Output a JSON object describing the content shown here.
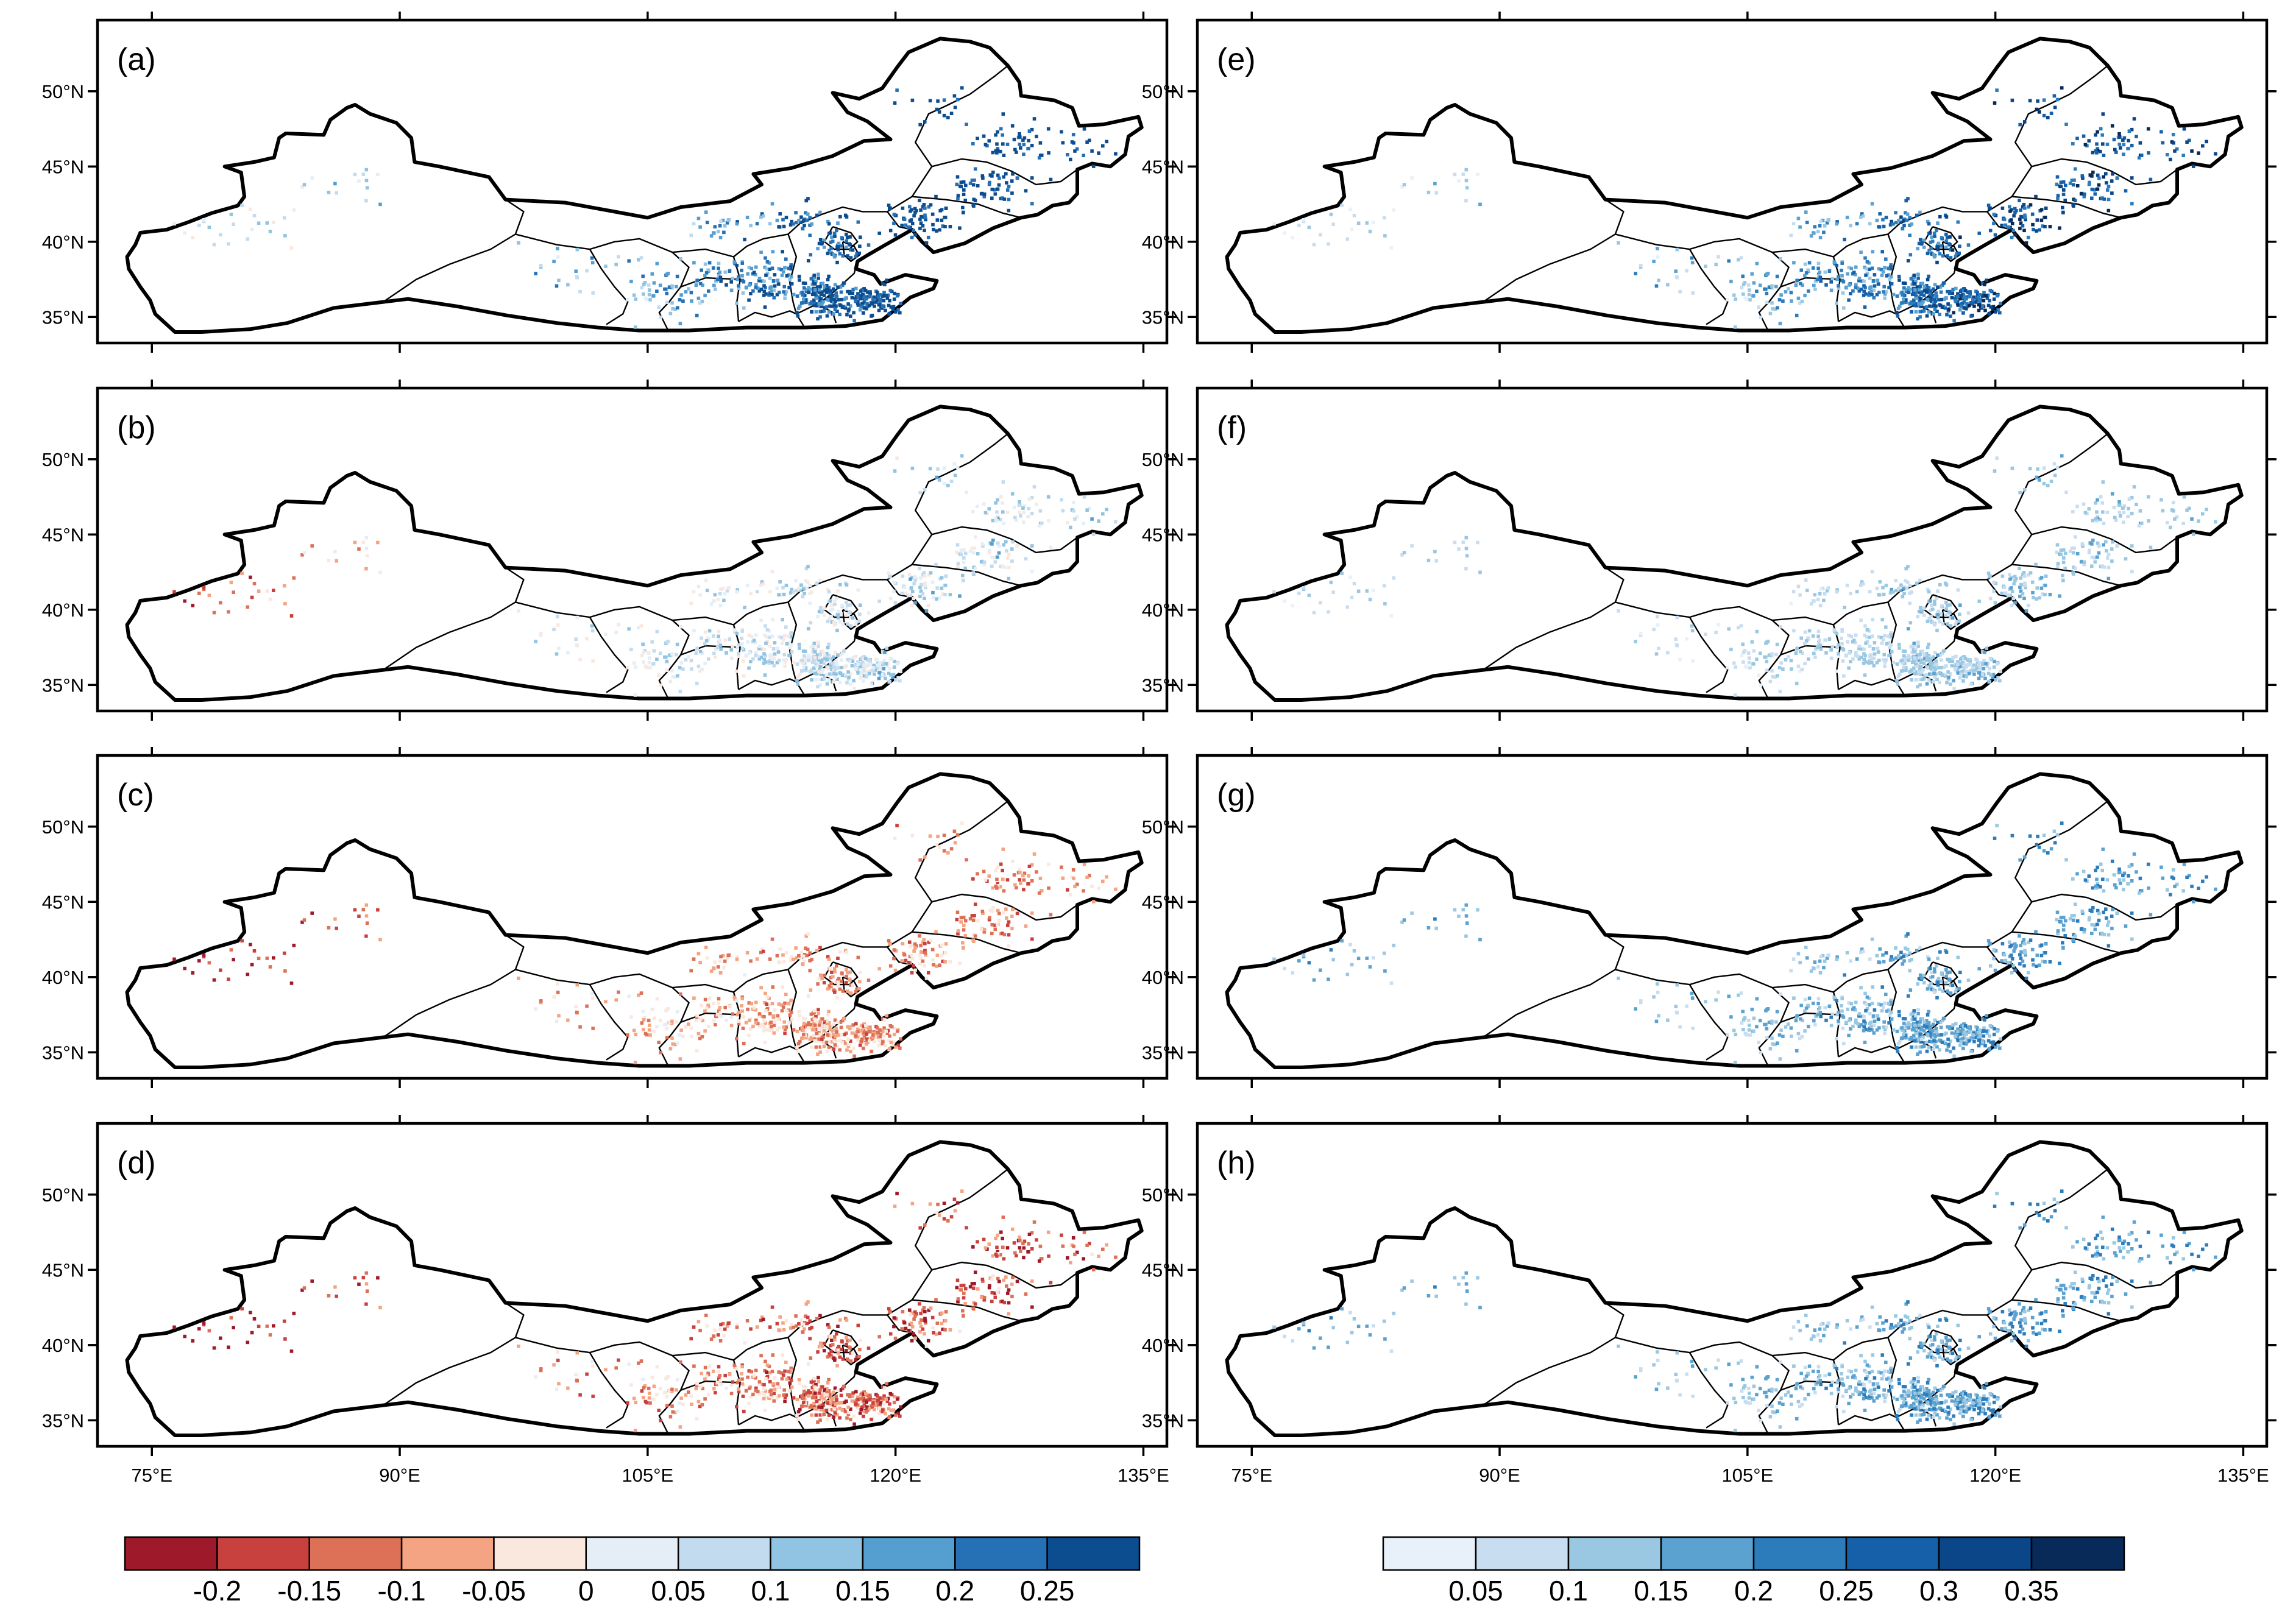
{
  "figure": {
    "panels": [
      {
        "id": "a",
        "label": "(a)",
        "column": "left",
        "scheme": "diverging",
        "pattern": "positive_strong"
      },
      {
        "id": "b",
        "label": "(b)",
        "column": "left",
        "scheme": "diverging",
        "pattern": "mixed_weak"
      },
      {
        "id": "c",
        "label": "(c)",
        "column": "left",
        "scheme": "diverging",
        "pattern": "negative_moderate"
      },
      {
        "id": "d",
        "label": "(d)",
        "column": "left",
        "scheme": "diverging",
        "pattern": "negative_strong"
      },
      {
        "id": "e",
        "label": "(e)",
        "column": "right",
        "scheme": "sequential",
        "pattern": "positive_strong"
      },
      {
        "id": "f",
        "label": "(f)",
        "column": "right",
        "scheme": "sequential",
        "pattern": "positive_weak"
      },
      {
        "id": "g",
        "label": "(g)",
        "column": "right",
        "scheme": "sequential",
        "pattern": "positive_moderate"
      },
      {
        "id": "h",
        "label": "(h)",
        "column": "right",
        "scheme": "sequential",
        "pattern": "positive_moderate"
      }
    ],
    "lat_ticks": [
      {
        "value": 35,
        "label": "35°N"
      },
      {
        "value": 40,
        "label": "40°N"
      },
      {
        "value": 45,
        "label": "45°N"
      },
      {
        "value": 50,
        "label": "50°N"
      }
    ],
    "lon_ticks": [
      {
        "value": 75,
        "label": "75°E"
      },
      {
        "value": 90,
        "label": "90°E"
      },
      {
        "value": 105,
        "label": "105°E"
      },
      {
        "value": 120,
        "label": "120°E"
      },
      {
        "value": 135,
        "label": "135°E"
      }
    ],
    "map_extent": {
      "lon": [
        73,
        135.5
      ],
      "lat": [
        34,
        54
      ]
    },
    "colorbars": [
      {
        "id": "diverging",
        "colors": [
          "#9e1a2a",
          "#c8413e",
          "#dd7158",
          "#f4a482",
          "#fae8de",
          "#e5eef6",
          "#c3dbee",
          "#91c3e2",
          "#549fd0",
          "#2670b5",
          "#0c4d8f"
        ],
        "tick_labels": [
          "-0.2",
          "-0.15",
          "-0.1",
          "-0.05",
          "0",
          "0.05",
          "0.1",
          "0.15",
          "0.2",
          "0.25"
        ]
      },
      {
        "id": "sequential",
        "colors": [
          "#e8f1f9",
          "#c9ddf0",
          "#9ac8e2",
          "#5ba2d1",
          "#2c7cbc",
          "#1560a9",
          "#0b4688",
          "#082a58"
        ],
        "tick_labels": [
          "0.05",
          "0.1",
          "0.15",
          "0.2",
          "0.25",
          "0.3",
          "0.35"
        ]
      }
    ]
  }
}
